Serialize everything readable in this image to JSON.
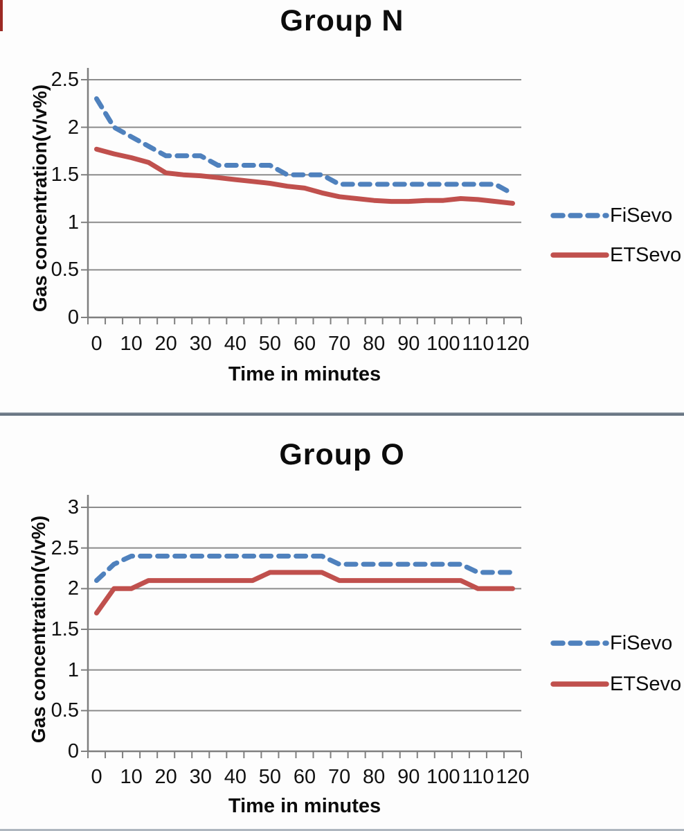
{
  "chart_data": [
    {
      "type": "line",
      "title": "Group N",
      "xlabel": "Time in minutes",
      "ylabel": "Gas concentration(v/v%)",
      "x": [
        0,
        5,
        10,
        15,
        20,
        25,
        30,
        35,
        40,
        45,
        50,
        55,
        60,
        65,
        70,
        75,
        80,
        85,
        90,
        95,
        100,
        105,
        110,
        115,
        120
      ],
      "x_tick_labels": [
        "0",
        "10",
        "20",
        "30",
        "40",
        "50",
        "60",
        "70",
        "80",
        "90",
        "100",
        "110",
        "120"
      ],
      "y_tick_labels": [
        "2.5",
        "2",
        "1.5",
        "1",
        "0.5",
        "0"
      ],
      "ylim": [
        0,
        2.5
      ],
      "ytick_step": 0.5,
      "grid": "horizontal",
      "legend_position": "right",
      "series": [
        {
          "name": "FiSevo",
          "color": "#4F81BD",
          "style": "dashed",
          "values": [
            2.3,
            2.0,
            1.9,
            1.8,
            1.7,
            1.7,
            1.7,
            1.6,
            1.6,
            1.6,
            1.6,
            1.5,
            1.5,
            1.5,
            1.4,
            1.4,
            1.4,
            1.4,
            1.4,
            1.4,
            1.4,
            1.4,
            1.4,
            1.4,
            1.3
          ]
        },
        {
          "name": "ETSevo",
          "color": "#C0504D",
          "style": "solid",
          "values": [
            1.77,
            1.72,
            1.68,
            1.63,
            1.52,
            1.5,
            1.49,
            1.47,
            1.45,
            1.43,
            1.41,
            1.38,
            1.36,
            1.31,
            1.27,
            1.25,
            1.23,
            1.22,
            1.22,
            1.23,
            1.23,
            1.25,
            1.24,
            1.22,
            1.2
          ]
        }
      ]
    },
    {
      "type": "line",
      "title": "Group O",
      "xlabel": "Time in minutes",
      "ylabel": "Gas concentration(v/v%)",
      "x": [
        0,
        5,
        10,
        15,
        20,
        25,
        30,
        35,
        40,
        45,
        50,
        55,
        60,
        65,
        70,
        75,
        80,
        85,
        90,
        95,
        100,
        105,
        110,
        115,
        120
      ],
      "x_tick_labels": [
        "0",
        "10",
        "20",
        "30",
        "40",
        "50",
        "60",
        "70",
        "80",
        "90",
        "100",
        "110",
        "120"
      ],
      "y_tick_labels": [
        "3",
        "2.5",
        "2",
        "1.5",
        "1",
        "0.5",
        "0"
      ],
      "ylim": [
        0,
        3
      ],
      "ytick_step": 0.5,
      "grid": "horizontal",
      "legend_position": "right",
      "series": [
        {
          "name": "FiSevo",
          "color": "#4F81BD",
          "style": "dashed",
          "values": [
            2.1,
            2.3,
            2.4,
            2.4,
            2.4,
            2.4,
            2.4,
            2.4,
            2.4,
            2.4,
            2.4,
            2.4,
            2.4,
            2.4,
            2.3,
            2.3,
            2.3,
            2.3,
            2.3,
            2.3,
            2.3,
            2.3,
            2.2,
            2.2,
            2.2
          ]
        },
        {
          "name": "ETSevo",
          "color": "#C0504D",
          "style": "solid",
          "values": [
            1.7,
            2.0,
            2.0,
            2.1,
            2.1,
            2.1,
            2.1,
            2.1,
            2.1,
            2.1,
            2.2,
            2.2,
            2.2,
            2.2,
            2.1,
            2.1,
            2.1,
            2.1,
            2.1,
            2.1,
            2.1,
            2.1,
            2.0,
            2.0,
            2.0
          ]
        }
      ]
    }
  ],
  "colors": {
    "fisevo": "#4F81BD",
    "etsevo": "#C0504D",
    "gridline": "#8c8c8c",
    "axis": "#7f7f7f",
    "divider": "#5e6b79"
  }
}
